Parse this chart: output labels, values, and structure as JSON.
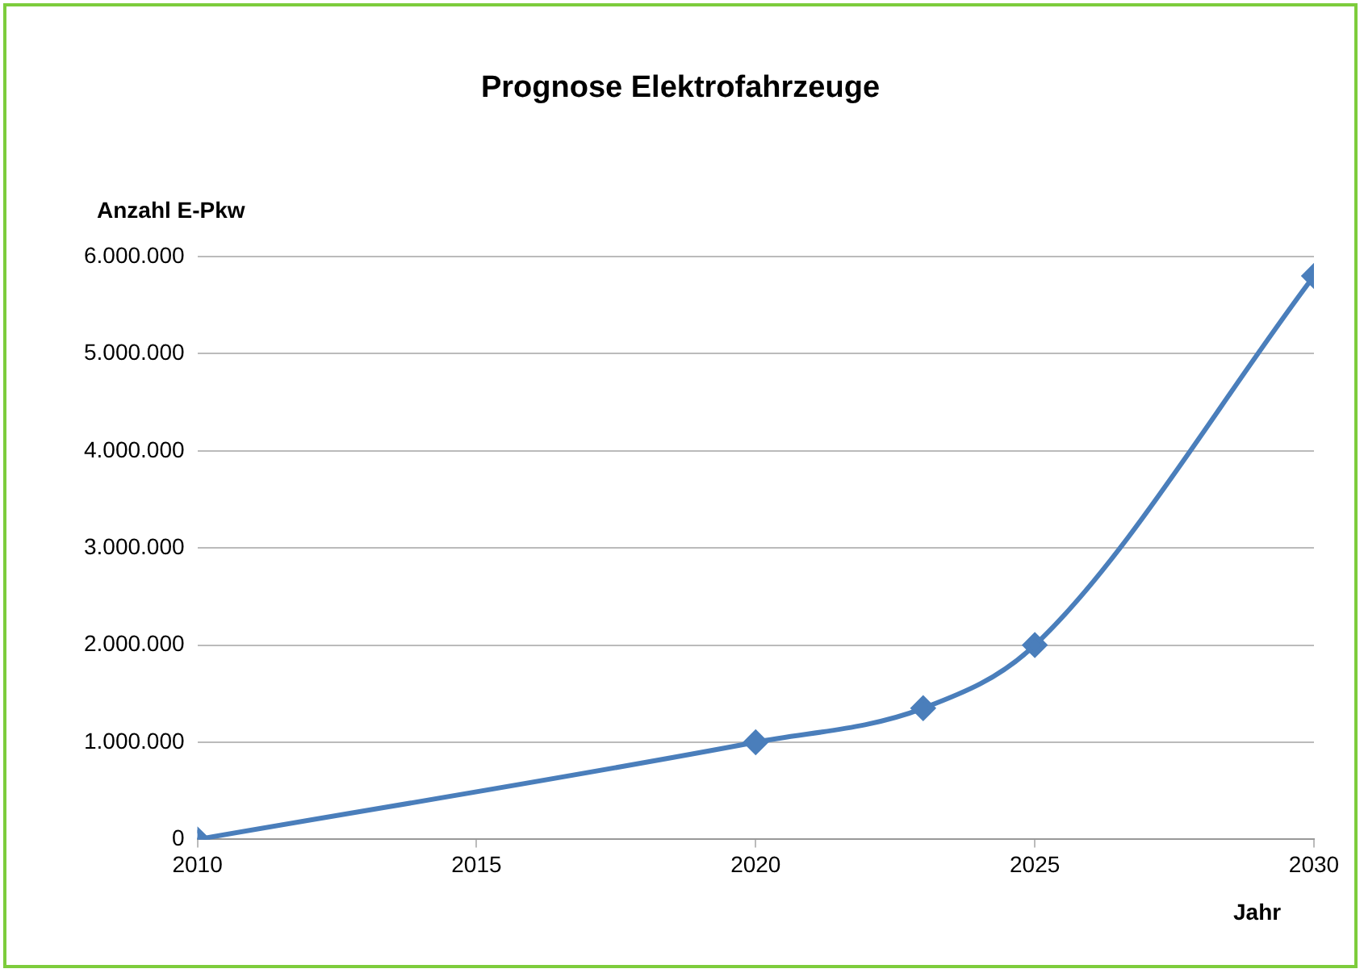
{
  "chart_data": {
    "type": "line",
    "title": "Prognose Elektrofahrzeuge",
    "xlabel": "Jahr",
    "ylabel": "Anzahl E-Pkw",
    "x": [
      2010,
      2020,
      2023,
      2025,
      2030
    ],
    "series": [
      {
        "color": "#4a7ebb",
        "values": [
          0,
          1000000,
          1350000,
          2000000,
          5800000
        ]
      }
    ],
    "xlim": [
      2010,
      2030
    ],
    "xticks": [
      2010,
      2015,
      2020,
      2025,
      2030
    ],
    "ylim": [
      0,
      6000000
    ],
    "yticks": [
      {
        "value": 0,
        "label": "0"
      },
      {
        "value": 1000000,
        "label": "1.000.000"
      },
      {
        "value": 2000000,
        "label": "2.000.000"
      },
      {
        "value": 3000000,
        "label": "3.000.000"
      },
      {
        "value": 4000000,
        "label": "4.000.000"
      },
      {
        "value": 5000000,
        "label": "5.000.000"
      },
      {
        "value": 6000000,
        "label": "6.000.000"
      }
    ],
    "grid": "y",
    "legend": false,
    "marker": "diamond",
    "line_style": "solid"
  }
}
